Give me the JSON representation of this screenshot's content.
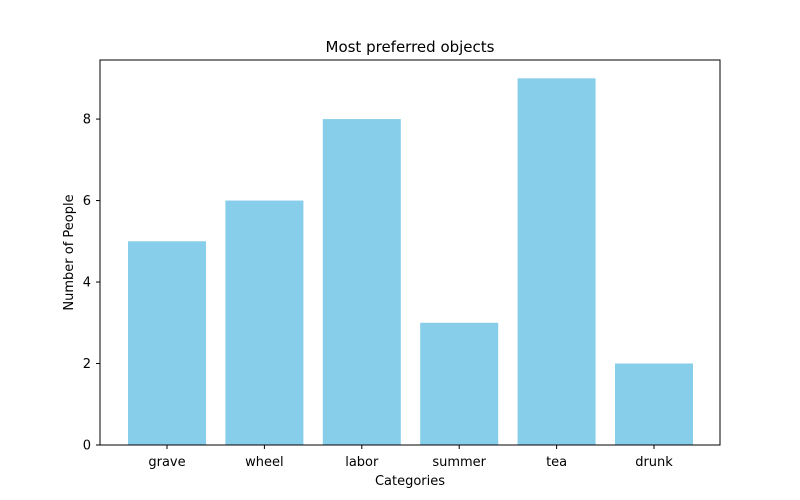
{
  "chart_data": {
    "type": "bar",
    "title": "Most preferred objects",
    "xlabel": "Categories",
    "ylabel": "Number of People",
    "categories": [
      "grave",
      "wheel",
      "labor",
      "summer",
      "tea",
      "drunk"
    ],
    "values": [
      5,
      6,
      8,
      3,
      9,
      2
    ],
    "ylim": [
      0,
      9.45
    ],
    "yticks": [
      0,
      2,
      4,
      6,
      8
    ],
    "bar_color": "#87CEEB",
    "grid": false,
    "legend": "none"
  }
}
